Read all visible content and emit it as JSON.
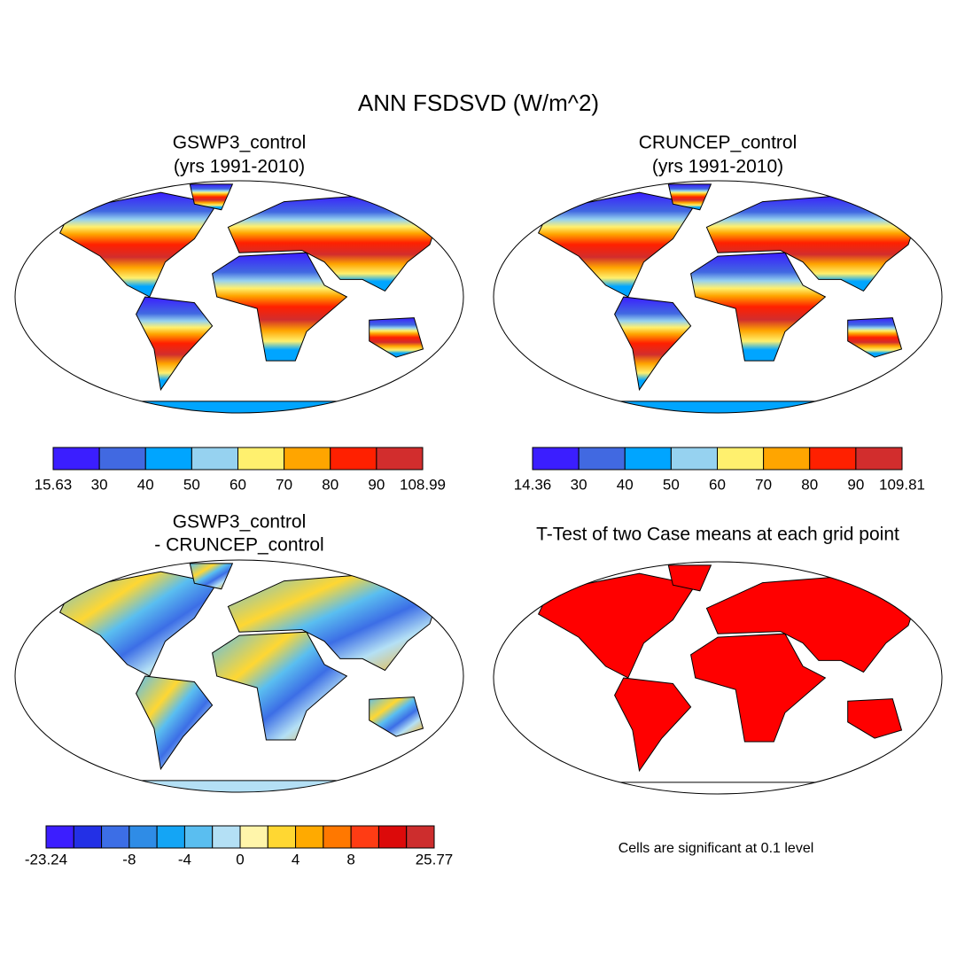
{
  "title": "ANN FSDSVD (W/m^2)",
  "panels": [
    {
      "title": "GSWP3_control",
      "subtitle": "(yrs 1991-2010)",
      "colorbar": {
        "colors": [
          "#3b1eff",
          "#4169e1",
          "#00a5ff",
          "#96d2f0",
          "#fff06e",
          "#ffa500",
          "#ff2000",
          "#d22d2d"
        ],
        "labels": [
          "15.63",
          "30",
          "40",
          "50",
          "60",
          "70",
          "80",
          "90",
          "108.99"
        ]
      }
    },
    {
      "title": "CRUNCEP_control",
      "subtitle": "(yrs 1991-2010)",
      "colorbar": {
        "colors": [
          "#3b1eff",
          "#4169e1",
          "#00a5ff",
          "#96d2f0",
          "#fff06e",
          "#ffa500",
          "#ff2000",
          "#d22d2d"
        ],
        "labels": [
          "14.36",
          "30",
          "40",
          "50",
          "60",
          "70",
          "80",
          "90",
          "109.81"
        ]
      }
    },
    {
      "title": "GSWP3_control",
      "subtitle": "- CRUNCEP_control",
      "colorbar": {
        "colors": [
          "#3c1eff",
          "#2330e6",
          "#3c6ee6",
          "#2f8ce6",
          "#14a5f5",
          "#5abef0",
          "#b4e0f5",
          "#fff5aa",
          "#ffd732",
          "#ffaa00",
          "#ff7800",
          "#ff3c14",
          "#dc0a0a",
          "#cd2d2d"
        ],
        "labels": [
          "-23.24",
          null,
          null,
          "-8",
          null,
          "-4",
          null,
          "0",
          null,
          "4",
          null,
          "8",
          null,
          null,
          "25.77"
        ]
      }
    },
    {
      "title": "T-Test of two Case means at each grid point",
      "note": "Cells are significant at 0.1 level"
    }
  ]
}
